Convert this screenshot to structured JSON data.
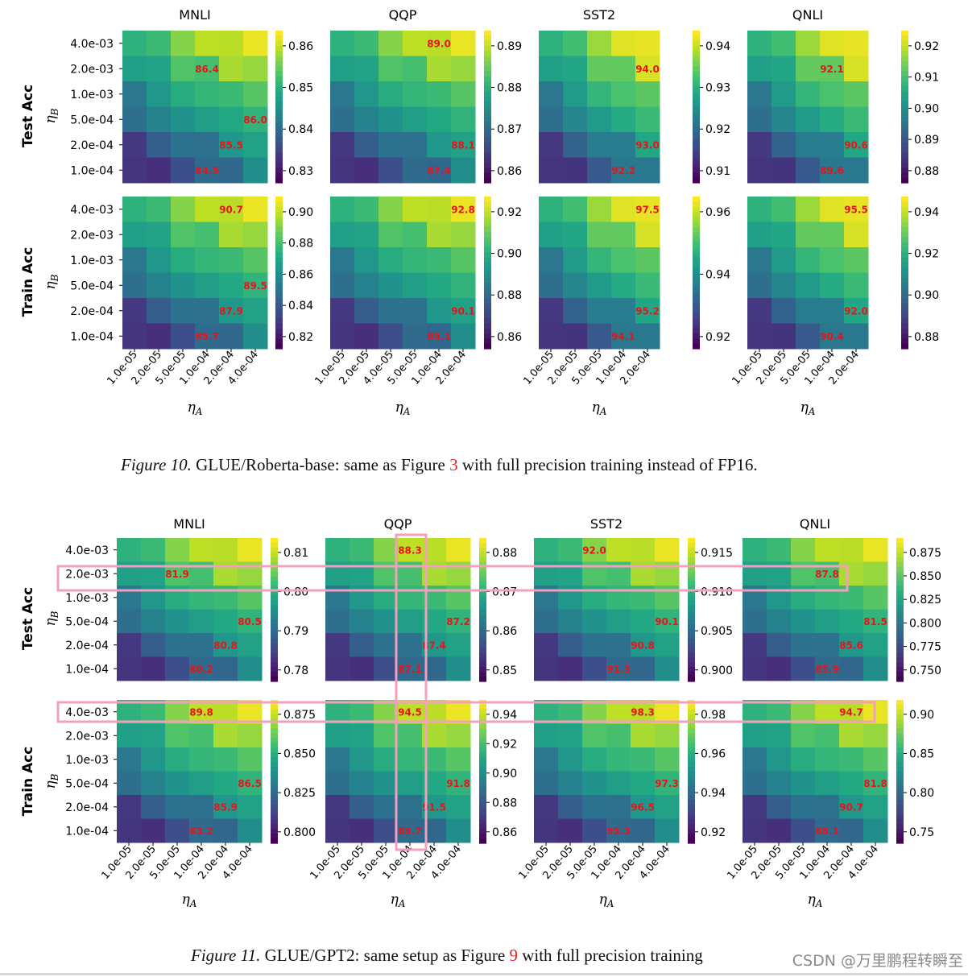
{
  "fig10": {
    "caption_label": "Figure 10.",
    "caption_text": " GLUE/Roberta-base: same as Figure ",
    "caption_ref": "3",
    "caption_rest": " with full precision training instead of FP16.",
    "rows": [
      "Test Acc",
      "Train Acc"
    ],
    "y_ticks": [
      "4.0e-03",
      "2.0e-03",
      "1.0e-03",
      "5.0e-04",
      "2.0e-04",
      "1.0e-04"
    ],
    "y_label": "η",
    "y_sub": "B",
    "x_label": "η",
    "x_sub": "A",
    "panels": [
      {
        "title": "MNLI",
        "x_ticks": [
          "1.0e-05",
          "2.0e-05",
          "5.0e-05",
          "1.0e-04",
          "2.0e-04",
          "4.0e-04"
        ],
        "test": {
          "cbar": [
            "0.86",
            "0.85",
            "0.84",
            "0.83"
          ],
          "annot": [
            [
              1,
              3,
              "86.4"
            ],
            [
              3,
              5,
              "86.0"
            ],
            [
              4,
              4,
              "85.5"
            ],
            [
              5,
              3,
              "84.5"
            ]
          ]
        },
        "train": {
          "cbar": [
            "0.90",
            "0.88",
            "0.86",
            "0.84",
            "0.82"
          ],
          "annot": [
            [
              0,
              4,
              "90.7"
            ],
            [
              3,
              5,
              "89.5"
            ],
            [
              4,
              4,
              "87.9"
            ],
            [
              5,
              3,
              "85.7"
            ]
          ]
        }
      },
      {
        "title": "QQP",
        "x_ticks": [
          "1.0e-05",
          "2.0e-05",
          "4.0e-05",
          "5.0e-05",
          "1.0e-04",
          "2.0e-04"
        ],
        "test": {
          "cbar": [
            "0.89",
            "0.88",
            "0.87",
            "0.86"
          ],
          "annot": [
            [
              0,
              4,
              "89.0"
            ],
            [
              4,
              5,
              "88.1"
            ],
            [
              5,
              4,
              "87.4"
            ]
          ]
        },
        "train": {
          "cbar": [
            "0.92",
            "0.90",
            "0.88",
            "0.86"
          ],
          "annot": [
            [
              0,
              5,
              "92.8"
            ],
            [
              4,
              5,
              "90.1"
            ],
            [
              5,
              4,
              "89.1"
            ]
          ]
        }
      },
      {
        "title": "SST2",
        "x_ticks": [
          "1.0e-05",
          "2.0e-05",
          "5.0e-05",
          "1.0e-04",
          "2.0e-04"
        ],
        "test": {
          "cbar": [
            "0.94",
            "0.93",
            "0.92",
            "0.91"
          ],
          "annot": [
            [
              1,
              4,
              "94.0"
            ],
            [
              4,
              4,
              "93.0"
            ],
            [
              5,
              3,
              "92.2"
            ]
          ]
        },
        "train": {
          "cbar": [
            "0.96",
            "0.94",
            "0.92"
          ],
          "annot": [
            [
              0,
              4,
              "97.5"
            ],
            [
              4,
              4,
              "95.2"
            ],
            [
              5,
              3,
              "94.1"
            ]
          ]
        }
      },
      {
        "title": "QNLI",
        "x_ticks": [
          "1.0e-05",
          "2.0e-05",
          "5.0e-05",
          "1.0e-04",
          "2.0e-04"
        ],
        "test": {
          "cbar": [
            "0.92",
            "0.91",
            "0.90",
            "0.89",
            "0.88"
          ],
          "annot": [
            [
              1,
              3,
              "92.1"
            ],
            [
              4,
              4,
              "90.6"
            ],
            [
              5,
              3,
              "89.6"
            ]
          ]
        },
        "train": {
          "cbar": [
            "0.94",
            "0.92",
            "0.90",
            "0.88"
          ],
          "annot": [
            [
              0,
              4,
              "95.5"
            ],
            [
              4,
              4,
              "92.0"
            ],
            [
              5,
              3,
              "90.4"
            ]
          ]
        }
      }
    ]
  },
  "fig11": {
    "caption_label": "Figure 11.",
    "caption_text": " GLUE/GPT2: same setup as Figure ",
    "caption_ref": "9",
    "caption_rest": " with full precision training",
    "rows": [
      "Test Acc",
      "Train Acc"
    ],
    "y_ticks": [
      "4.0e-03",
      "2.0e-03",
      "1.0e-03",
      "5.0e-04",
      "2.0e-04",
      "1.0e-04"
    ],
    "y_label": "η",
    "y_sub": "B",
    "x_label": "η",
    "x_sub": "A",
    "panels": [
      {
        "title": "MNLI",
        "x_ticks": [
          "1.0e-05",
          "2.0e-05",
          "5.0e-05",
          "1.0e-04",
          "2.0e-04",
          "4.0e-04"
        ],
        "test": {
          "cbar": [
            "0.81",
            "0.80",
            "0.79",
            "0.78"
          ],
          "annot": [
            [
              1,
              2,
              "81.9"
            ],
            [
              3,
              5,
              "80.5"
            ],
            [
              4,
              4,
              "80.8"
            ],
            [
              5,
              3,
              "80.2"
            ]
          ]
        },
        "train": {
          "cbar": [
            "0.875",
            "0.850",
            "0.825",
            "0.800"
          ],
          "annot": [
            [
              0,
              3,
              "89.8"
            ],
            [
              3,
              5,
              "86.5"
            ],
            [
              4,
              4,
              "85.9"
            ],
            [
              5,
              3,
              "83.2"
            ]
          ]
        }
      },
      {
        "title": "QQP",
        "x_ticks": [
          "1.0e-05",
          "2.0e-05",
          "5.0e-05",
          "1.0e-04",
          "2.0e-04",
          "4.0e-04"
        ],
        "test": {
          "cbar": [
            "0.88",
            "0.87",
            "0.86",
            "0.85"
          ],
          "annot": [
            [
              0,
              3,
              "88.3"
            ],
            [
              3,
              5,
              "87.2"
            ],
            [
              4,
              4,
              "87.4"
            ],
            [
              5,
              3,
              "87.1"
            ]
          ]
        },
        "train": {
          "cbar": [
            "0.94",
            "0.92",
            "0.90",
            "0.88",
            "0.86"
          ],
          "annot": [
            [
              0,
              3,
              "94.5"
            ],
            [
              3,
              5,
              "91.8"
            ],
            [
              4,
              4,
              "91.5"
            ],
            [
              5,
              3,
              "89.7"
            ]
          ]
        }
      },
      {
        "title": "SST2",
        "x_ticks": [
          "1.0e-05",
          "2.0e-05",
          "5.0e-05",
          "1.0e-04",
          "2.0e-04",
          "4.0e-04"
        ],
        "test": {
          "cbar": [
            "0.915",
            "0.910",
            "0.905",
            "0.900"
          ],
          "annot": [
            [
              0,
              2,
              "92.0"
            ],
            [
              3,
              5,
              "90.1"
            ],
            [
              4,
              4,
              "90.8"
            ],
            [
              5,
              3,
              "91.3"
            ]
          ]
        },
        "train": {
          "cbar": [
            "0.98",
            "0.96",
            "0.94",
            "0.92"
          ],
          "annot": [
            [
              0,
              4,
              "98.3"
            ],
            [
              3,
              5,
              "97.3"
            ],
            [
              4,
              4,
              "96.5"
            ],
            [
              5,
              3,
              "95.3"
            ]
          ]
        }
      },
      {
        "title": "QNLI",
        "x_ticks": [
          "1.0e-05",
          "2.0e-05",
          "5.0e-05",
          "1.0e-04",
          "2.0e-04",
          "4.0e-04"
        ],
        "test": {
          "cbar": [
            "0.875",
            "0.850",
            "0.825",
            "0.800",
            "0.775",
            "0.750"
          ],
          "annot": [
            [
              1,
              3,
              "87.8"
            ],
            [
              3,
              5,
              "81.5"
            ],
            [
              4,
              4,
              "85.6"
            ],
            [
              5,
              3,
              "85.9"
            ]
          ]
        },
        "train": {
          "cbar": [
            "0.90",
            "0.85",
            "0.80",
            "0.75"
          ],
          "annot": [
            [
              0,
              4,
              "94.7"
            ],
            [
              3,
              5,
              "81.8"
            ],
            [
              4,
              4,
              "90.7"
            ],
            [
              5,
              3,
              "88.1"
            ]
          ]
        }
      }
    ]
  },
  "watermark": "CSDN @万里鹏程转瞬至",
  "colors": {
    "annotation": "#e8141c",
    "highlight_box": "#f2a0bd"
  }
}
